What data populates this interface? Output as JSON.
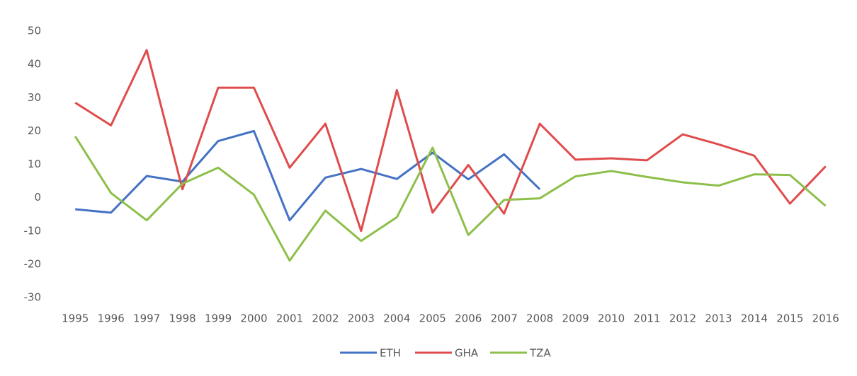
{
  "chart_data": {
    "type": "line",
    "categories": [
      "1995",
      "1996",
      "1997",
      "1998",
      "1999",
      "2000",
      "2001",
      "2002",
      "2003",
      "2004",
      "2005",
      "2006",
      "2007",
      "2008",
      "2009",
      "2010",
      "2011",
      "2012",
      "2013",
      "2014",
      "2015",
      "2016"
    ],
    "series": [
      {
        "name": "ETH",
        "color": "#4472c4",
        "values": [
          -3.5,
          -4.5,
          6.5,
          4.8,
          17,
          20,
          -6.8,
          6,
          8.6,
          5.6,
          13.5,
          5.5,
          13,
          2.5,
          null,
          null,
          null,
          null,
          null,
          null,
          null,
          null
        ]
      },
      {
        "name": "GHA",
        "color": "#e04b4b",
        "values": [
          28.5,
          21.7,
          44.3,
          2.5,
          33,
          33,
          9,
          22.2,
          -10,
          32.3,
          -4.5,
          9.8,
          -4.8,
          22.2,
          11.4,
          11.8,
          11.2,
          19,
          16,
          12.6,
          -1.8,
          9.4
        ]
      },
      {
        "name": "TZA",
        "color": "#8dbf4a",
        "values": [
          18.4,
          1.4,
          -6.8,
          4.2,
          9,
          0.9,
          -18.9,
          -3.9,
          -13,
          -5.9,
          15,
          -11.2,
          -0.7,
          -0.2,
          6.4,
          8,
          6.2,
          4.6,
          3.6,
          7,
          6.8,
          -2.5
        ]
      }
    ],
    "ylim": [
      -30,
      50
    ],
    "yticks": [
      -30,
      -20,
      -10,
      0,
      10,
      20,
      30,
      40,
      50
    ],
    "grid": false,
    "legend": "bottom"
  }
}
